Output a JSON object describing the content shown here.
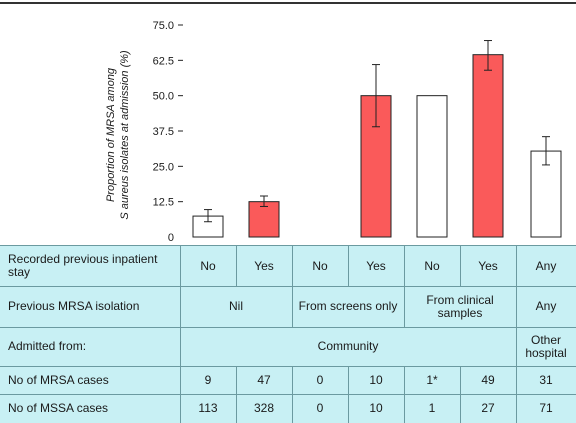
{
  "chart_data": {
    "type": "bar",
    "ylabel_line1": "Proportion of MRSA among",
    "ylabel_line2": "S aureus isolates at admission (%)",
    "ylim": [
      0,
      75
    ],
    "yticks": [
      "0",
      "12.5",
      "25.0",
      "37.5",
      "50.0",
      "62.5",
      "75.0"
    ],
    "bars": [
      {
        "value": 7.4,
        "err_low": 5.4,
        "err_high": 9.7,
        "fill": "white"
      },
      {
        "value": 12.5,
        "err_low": 10.8,
        "err_high": 14.5,
        "fill": "red"
      },
      {
        "value": null,
        "err_low": null,
        "err_high": null,
        "fill": "white"
      },
      {
        "value": 50.0,
        "err_low": 39.0,
        "err_high": 61.0,
        "fill": "red"
      },
      {
        "value": 50.0,
        "err_low": null,
        "err_high": null,
        "fill": "white"
      },
      {
        "value": 64.5,
        "err_low": 59.0,
        "err_high": 69.5,
        "fill": "red"
      },
      {
        "value": 30.4,
        "err_low": 25.5,
        "err_high": 35.5,
        "fill": "white"
      }
    ],
    "colors": {
      "red": "#fa5a5a",
      "white": "#ffffff",
      "outline": "#222222"
    }
  },
  "table": {
    "row_labels": {
      "previous_stay": "Recorded previous inpatient stay",
      "previous_mrsa": "Previous MRSA isolation",
      "admitted_from": "Admitted from:",
      "mrsa_cases": "No of MRSA cases",
      "mssa_cases": "No of MSSA cases"
    },
    "previous_stay": [
      "No",
      "Yes",
      "No",
      "Yes",
      "No",
      "Yes",
      "Any"
    ],
    "previous_mrsa": {
      "nil": "Nil",
      "screens": "From screens only",
      "clinical": "From clinical samples",
      "any": "Any"
    },
    "admitted_from": {
      "community": "Community",
      "other": "Other hospital"
    },
    "mrsa_cases": [
      "9",
      "47",
      "0",
      "10",
      "1*",
      "49",
      "31"
    ],
    "mssa_cases": [
      "113",
      "328",
      "0",
      "10",
      "1",
      "27",
      "71"
    ]
  },
  "colors": {
    "table_bg": "#c8f0f4",
    "grid": "#6b9aa0"
  }
}
